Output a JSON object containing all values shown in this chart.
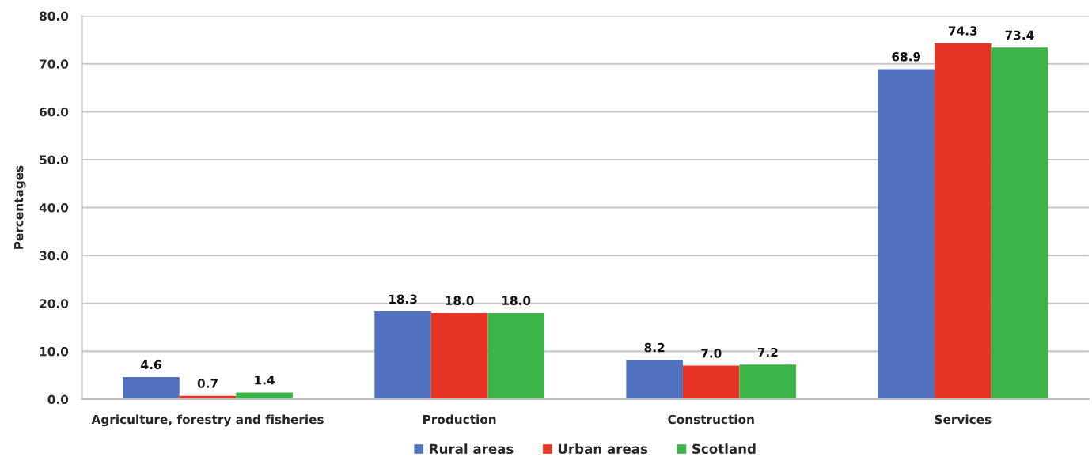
{
  "chart_data": {
    "type": "bar",
    "ylabel": "Percentages",
    "categories": [
      "Agriculture, forestry and fisheries",
      "Production",
      "Construction",
      "Services"
    ],
    "series": [
      {
        "name": "Rural areas",
        "color": "#5072bf",
        "values": [
          4.6,
          18.3,
          8.2,
          68.9
        ],
        "value_labels": [
          "4.6",
          "18.3",
          "8.2",
          "68.9"
        ]
      },
      {
        "name": "Urban areas",
        "color": "#e83424",
        "values": [
          0.7,
          18.0,
          7.0,
          74.3
        ],
        "value_labels": [
          "0.7",
          "18.0",
          "7.0",
          "74.3"
        ]
      },
      {
        "name": "Scotland",
        "color": "#3cb44a",
        "values": [
          1.4,
          18.0,
          7.2,
          73.4
        ],
        "value_labels": [
          "1.4",
          "18.0",
          "7.2",
          "73.4"
        ]
      }
    ],
    "ylim": [
      0,
      80
    ],
    "yticks": [
      {
        "value": 0,
        "label": "0.0"
      },
      {
        "value": 10,
        "label": "10.0"
      },
      {
        "value": 20,
        "label": "20.0"
      },
      {
        "value": 30,
        "label": "30.0"
      },
      {
        "value": 40,
        "label": "40.0"
      },
      {
        "value": 50,
        "label": "50.0"
      },
      {
        "value": 60,
        "label": "60.0"
      },
      {
        "value": 70,
        "label": "70.0"
      },
      {
        "value": 80,
        "label": "80.0"
      }
    ],
    "grid": "y",
    "legend": "bottom"
  }
}
